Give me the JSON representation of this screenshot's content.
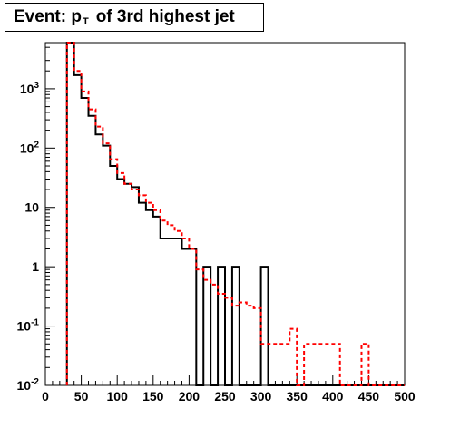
{
  "title": {
    "prefix": "Event: p",
    "subscript": "T",
    "suffix": "of 3rd highest jet"
  },
  "chart_data": {
    "type": "histogram",
    "title": "Event: p_T of 3rd highest jet",
    "xlabel": "",
    "ylabel": "",
    "xlim": [
      0,
      500
    ],
    "ylim": [
      0.01,
      6000
    ],
    "y_scale": "log",
    "grid": false,
    "legend": "none",
    "x_ticks": [
      0,
      50,
      100,
      150,
      200,
      250,
      300,
      350,
      400,
      450,
      500
    ],
    "x_tick_labels": [
      "0",
      "50",
      "100",
      "150",
      "200",
      "250",
      "300",
      "350",
      "400",
      "450",
      "500"
    ],
    "y_ticks": [
      {
        "value": 0.01,
        "base": "10",
        "exp": "-2"
      },
      {
        "value": 0.1,
        "base": "10",
        "exp": "-1"
      },
      {
        "value": 1,
        "base": "1",
        "exp": ""
      },
      {
        "value": 10,
        "base": "10",
        "exp": ""
      },
      {
        "value": 100,
        "base": "10",
        "exp": "2"
      },
      {
        "value": 1000,
        "base": "10",
        "exp": "3"
      }
    ],
    "bin_edges": [
      30,
      40,
      50,
      60,
      70,
      80,
      90,
      100,
      110,
      120,
      130,
      140,
      150,
      160,
      170,
      180,
      190,
      200,
      210,
      220,
      230,
      240,
      250,
      260,
      270,
      280,
      290,
      300,
      310,
      320,
      330,
      340,
      350,
      360,
      370,
      380,
      390,
      400,
      410,
      420,
      430,
      440,
      450,
      460,
      470,
      480,
      490,
      500
    ],
    "series": [
      {
        "color": "#000000",
        "style": "solid",
        "values": [
          6000,
          1700,
          700,
          350,
          170,
          110,
          50,
          30,
          25,
          22,
          12,
          9,
          7,
          3,
          3,
          3,
          2,
          2,
          0,
          1,
          0,
          1,
          0,
          1,
          0,
          0,
          0,
          1,
          0,
          0,
          0,
          0,
          0,
          0,
          0,
          0,
          0,
          0,
          0,
          0,
          0,
          0,
          0,
          0,
          0,
          0,
          0
        ]
      },
      {
        "color": "#ff0000",
        "style": "dashed",
        "values": [
          6000,
          2000,
          900,
          450,
          230,
          120,
          65,
          38,
          25,
          20,
          16,
          12,
          9,
          6,
          5,
          4,
          3,
          2,
          0.9,
          0.6,
          0.5,
          0.35,
          0.3,
          0.22,
          0.25,
          0.22,
          0.2,
          0.05,
          0.05,
          0.05,
          0.05,
          0.09,
          0.01,
          0.05,
          0.05,
          0.05,
          0.05,
          0.05,
          0.01,
          0.01,
          0.01,
          0.05,
          0.01,
          0.01,
          0.01,
          0.01,
          0.01
        ]
      }
    ]
  }
}
